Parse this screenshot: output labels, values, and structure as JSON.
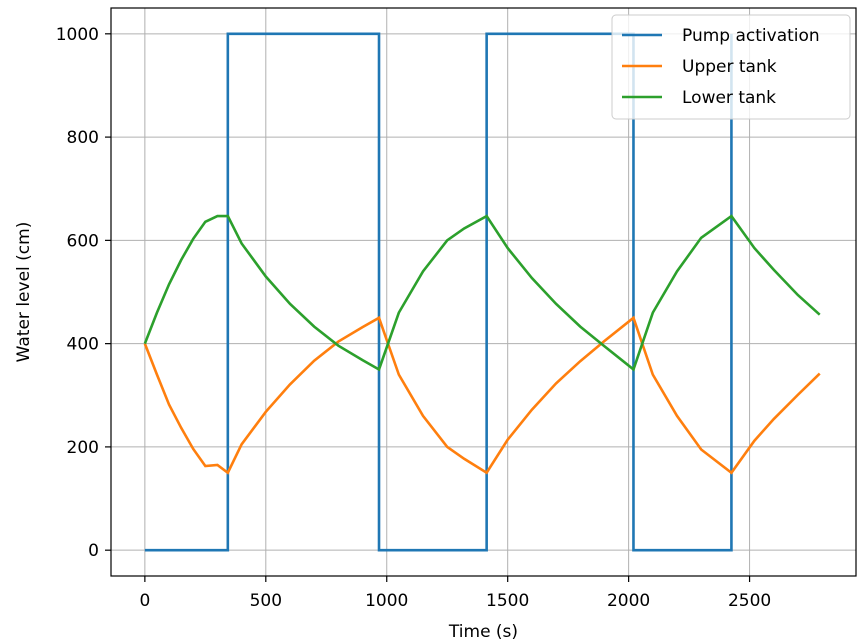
{
  "chart_data": {
    "type": "line",
    "title": "",
    "xlabel": "Time (s)",
    "ylabel": "Water level (cm)",
    "xlim": [
      -140,
      2940
    ],
    "ylim": [
      -50,
      1050
    ],
    "xticks": [
      0,
      500,
      1000,
      1500,
      2000,
      2500
    ],
    "yticks": [
      0,
      200,
      400,
      600,
      800,
      1000
    ],
    "grid": true,
    "legend_position": "top-right",
    "series": [
      {
        "name": "Pump activation",
        "color": "#1f77b4",
        "step": true,
        "x": [
          0,
          343,
          343,
          968,
          968,
          1413,
          1413,
          2020,
          2020,
          2425,
          2425
        ],
        "y": [
          0,
          0,
          1000,
          1000,
          0,
          0,
          1000,
          1000,
          0,
          0,
          1000
        ]
      },
      {
        "name": "Upper tank",
        "color": "#ff7f0e",
        "x": [
          0,
          50,
          100,
          150,
          200,
          250,
          300,
          343,
          400,
          500,
          600,
          700,
          800,
          900,
          968,
          1050,
          1150,
          1250,
          1320,
          1413,
          1500,
          1600,
          1700,
          1800,
          1900,
          2020,
          2100,
          2200,
          2300,
          2425,
          2520,
          2600,
          2700,
          2790
        ],
        "y": [
          400,
          340,
          282,
          237,
          196,
          163,
          165,
          150,
          205,
          268,
          321,
          367,
          404,
          432,
          450,
          340,
          260,
          200,
          177,
          150,
          214,
          272,
          323,
          366,
          405,
          450,
          340,
          260,
          195,
          150,
          212,
          254,
          301,
          342
        ]
      },
      {
        "name": "Lower tank",
        "color": "#2ca02c",
        "x": [
          0,
          50,
          100,
          150,
          200,
          250,
          300,
          343,
          400,
          500,
          600,
          700,
          800,
          900,
          968,
          1050,
          1150,
          1250,
          1320,
          1413,
          1500,
          1600,
          1700,
          1800,
          1900,
          2020,
          2100,
          2200,
          2300,
          2425,
          2520,
          2600,
          2700,
          2790
        ],
        "y": [
          400,
          460,
          515,
          562,
          603,
          636,
          647,
          647,
          594,
          530,
          477,
          433,
          396,
          368,
          350,
          460,
          540,
          600,
          623,
          647,
          585,
          527,
          477,
          433,
          395,
          350,
          460,
          540,
          605,
          647,
          585,
          543,
          494,
          456
        ]
      }
    ]
  }
}
